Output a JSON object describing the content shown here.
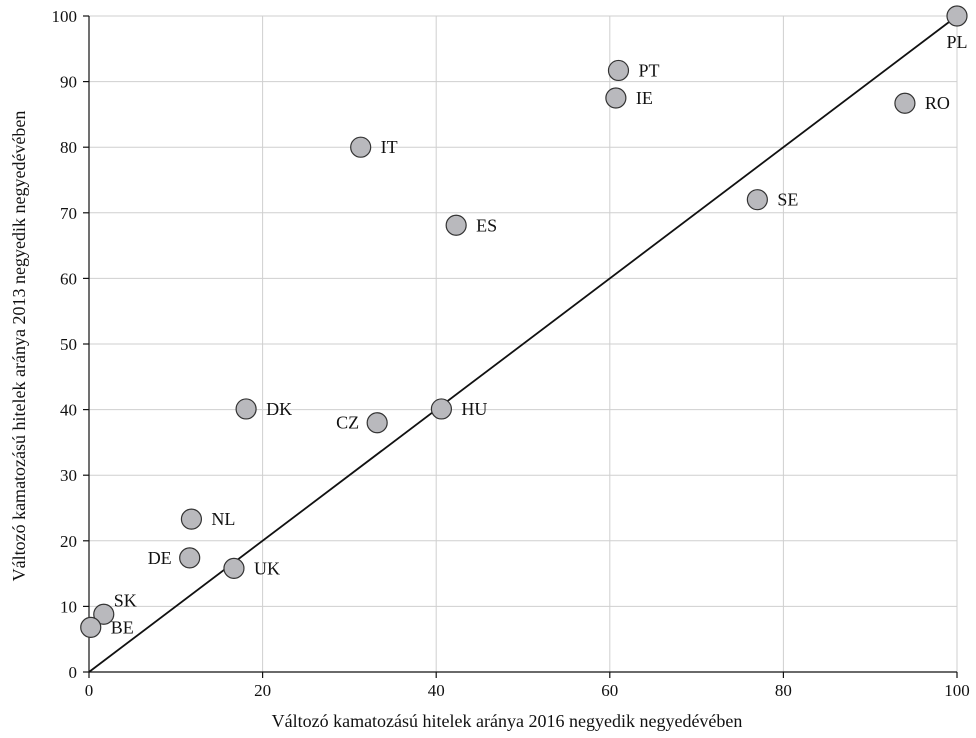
{
  "chart_data": {
    "type": "scatter",
    "title": "",
    "xlabel": "Változó kamatozású hitelek aránya 2016 negyedik negyedévében",
    "ylabel": "Változó kamatozású hitelek aránya 2013 negyedik negyedévében",
    "xlim": [
      0,
      100
    ],
    "ylim": [
      0,
      100
    ],
    "x_ticks": [
      0,
      20,
      40,
      60,
      80,
      100
    ],
    "y_ticks": [
      0,
      10,
      20,
      30,
      40,
      50,
      60,
      70,
      80,
      90,
      100
    ],
    "grid": "vertical",
    "reference_line": {
      "from": [
        0,
        0
      ],
      "to": [
        100,
        100
      ]
    },
    "points": [
      {
        "label": "PL",
        "x": 100,
        "y": 100,
        "label_pos": "below"
      },
      {
        "label": "PT",
        "x": 61,
        "y": 91.7,
        "label_pos": "right"
      },
      {
        "label": "IE",
        "x": 60.7,
        "y": 87.5,
        "label_pos": "right"
      },
      {
        "label": "RO",
        "x": 94,
        "y": 86.7,
        "label_pos": "right"
      },
      {
        "label": "IT",
        "x": 31.3,
        "y": 80,
        "label_pos": "right"
      },
      {
        "label": "SE",
        "x": 77,
        "y": 72,
        "label_pos": "right"
      },
      {
        "label": "ES",
        "x": 42.3,
        "y": 68.1,
        "label_pos": "right"
      },
      {
        "label": "DK",
        "x": 18.1,
        "y": 40.1,
        "label_pos": "right"
      },
      {
        "label": "HU",
        "x": 40.6,
        "y": 40.1,
        "label_pos": "right"
      },
      {
        "label": "CZ",
        "x": 33.2,
        "y": 38,
        "label_pos": "left"
      },
      {
        "label": "NL",
        "x": 11.8,
        "y": 23.3,
        "label_pos": "right"
      },
      {
        "label": "DE",
        "x": 11.6,
        "y": 17.4,
        "label_pos": "left"
      },
      {
        "label": "UK",
        "x": 16.7,
        "y": 15.8,
        "label_pos": "right"
      },
      {
        "label": "SK",
        "x": 1.7,
        "y": 8.8,
        "label_pos": "above-right"
      },
      {
        "label": "BE",
        "x": 0.2,
        "y": 6.8,
        "label_pos": "right"
      }
    ],
    "point_color": "#b9b9bd"
  }
}
